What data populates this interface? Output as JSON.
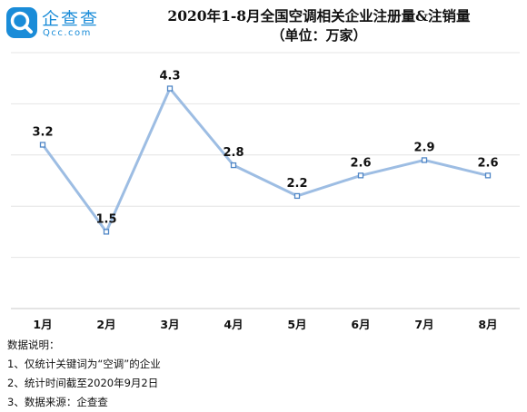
{
  "brand": {
    "name": "企查查",
    "domain": "Qcc.com",
    "color": "#1a8cd8"
  },
  "chart_data": {
    "type": "line",
    "title": "2020年1-8月全国空调相关企业注册量&注销量",
    "subtitle": "（单位：万家）",
    "categories": [
      "1月",
      "2月",
      "3月",
      "4月",
      "5月",
      "6月",
      "7月",
      "8月"
    ],
    "series": [
      {
        "values": [
          3.2,
          1.5,
          4.3,
          2.8,
          2.2,
          2.6,
          2.9,
          2.6
        ],
        "labels": [
          "3.2",
          "1.5",
          "4.3",
          "2.8",
          "2.2",
          "2.6",
          "2.9",
          "2.6"
        ]
      }
    ],
    "ylim": [
      0,
      5
    ],
    "grid": true,
    "line_color": "#9dbde3",
    "marker_color": "#4f86c6"
  },
  "notes": {
    "heading": "数据说明：",
    "items": [
      "1、仅统计关键词为“空调”的企业",
      "2、统计时间截至2020年9月2日",
      "3、数据来源：企查查"
    ]
  }
}
